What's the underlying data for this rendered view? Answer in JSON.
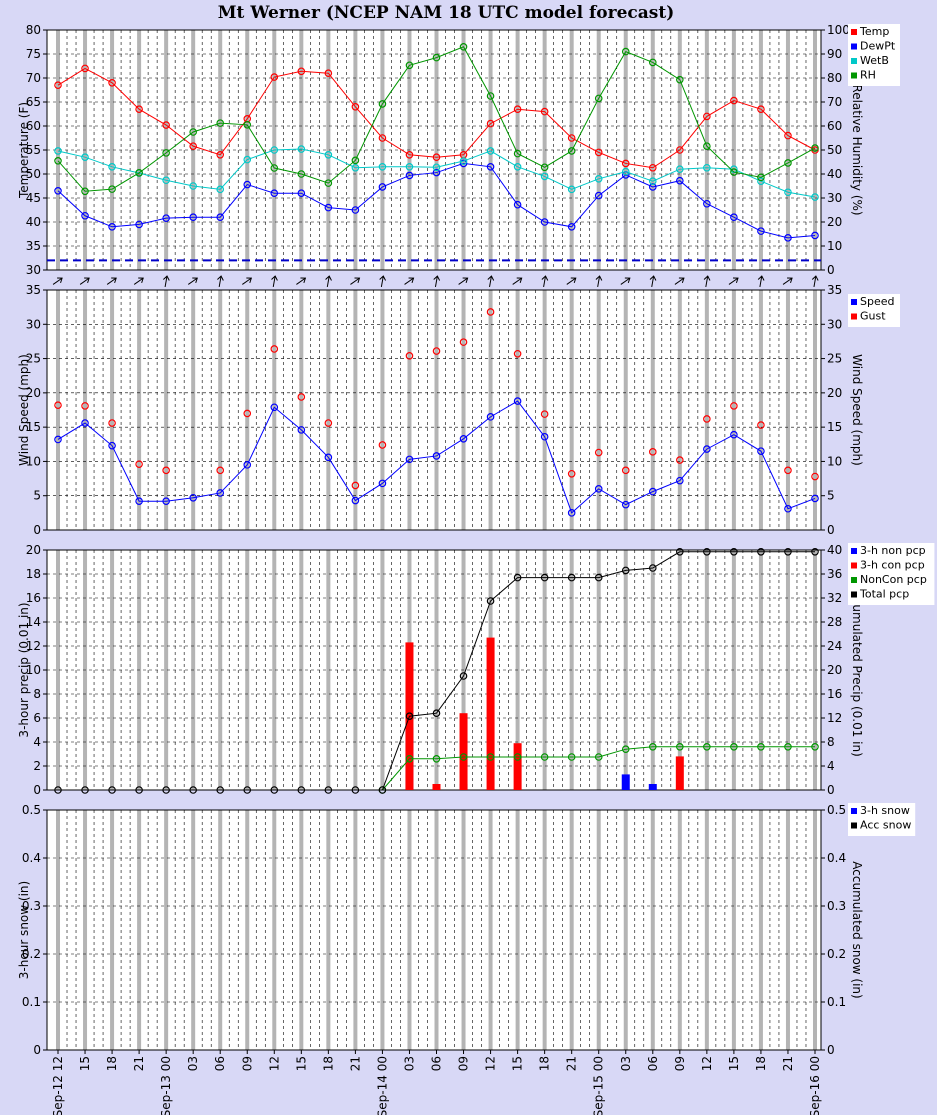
{
  "title": "Mt Werner (NCEP NAM 18 UTC model forecast)",
  "x_labels": [
    "Sep-12 12",
    "15",
    "18",
    "21",
    "Sep-13 00",
    "03",
    "06",
    "09",
    "12",
    "15",
    "18",
    "21",
    "Sep-14 00",
    "03",
    "06",
    "09",
    "12",
    "15",
    "18",
    "21",
    "Sep-15 00",
    "03",
    "06",
    "09",
    "12",
    "15",
    "18",
    "21",
    "Sep-16 00"
  ],
  "chart_data": [
    {
      "type": "line",
      "ylabel": "Temperature (F)",
      "y2label": "Relative Humidity (%)",
      "ylim": [
        30,
        80
      ],
      "yticks": [
        30,
        35,
        40,
        45,
        50,
        55,
        60,
        65,
        70,
        75,
        80
      ],
      "y2lim": [
        0,
        100
      ],
      "y2ticks": [
        0,
        10,
        20,
        30,
        40,
        50,
        60,
        70,
        80,
        90,
        100
      ],
      "freezing_line": 32,
      "wind_arrows": true,
      "series": [
        {
          "name": "Temp",
          "axis": "left",
          "color": "#ff0000",
          "values": [
            68.5,
            72,
            69,
            63.5,
            60.2,
            55.8,
            54,
            61.5,
            70.2,
            71.4,
            71,
            64,
            57.5,
            54,
            53.5,
            54,
            60.5,
            63.5,
            63,
            57.5,
            54.5,
            52.2,
            51.3,
            55,
            62,
            65.3,
            63.5,
            58,
            55
          ]
        },
        {
          "name": "DewPt",
          "axis": "left",
          "color": "#0000ff",
          "values": [
            46.5,
            41.3,
            39,
            39.5,
            40.8,
            41,
            41,
            47.8,
            46,
            46,
            43,
            42.5,
            47.3,
            49.7,
            50.3,
            52.2,
            51.5,
            43.6,
            40,
            39,
            45.5,
            49.8,
            47.3,
            48.6,
            43.8,
            41,
            38.1,
            36.7,
            37.2
          ]
        },
        {
          "name": "WetB",
          "axis": "left",
          "color": "#00c8c8",
          "values": [
            54.8,
            53.5,
            51.5,
            50.2,
            48.7,
            47.5,
            46.8,
            53,
            55,
            55.2,
            54,
            51.3,
            51.5,
            51.5,
            51.4,
            52.7,
            54.8,
            51.5,
            49.5,
            46.8,
            49,
            50.5,
            48.5,
            51,
            51.3,
            51,
            48.5,
            46.2,
            45.2
          ]
        },
        {
          "name": "RH",
          "axis": "right",
          "color": "#009600",
          "values": [
            45.5,
            32.8,
            33.7,
            40.5,
            48.8,
            57.5,
            61.2,
            60.5,
            42.5,
            40,
            36.2,
            45.7,
            69.2,
            85.3,
            88.5,
            93,
            72.5,
            48.5,
            42.8,
            49.6,
            71.5,
            91,
            86.5,
            79.3,
            51.6,
            40.8,
            38.6,
            44.6,
            50.8
          ]
        }
      ]
    },
    {
      "type": "line",
      "ylabel": "Wind Speed (mph)",
      "y2label": "Wind Speed (mph)",
      "ylim": [
        0,
        35
      ],
      "yticks": [
        0,
        5,
        10,
        15,
        20,
        25,
        30,
        35
      ],
      "y2lim": [
        0,
        35
      ],
      "y2ticks": [
        0,
        5,
        10,
        15,
        20,
        25,
        30,
        35
      ],
      "series": [
        {
          "name": "Speed",
          "axis": "left",
          "color": "#0000ff",
          "line": true,
          "values": [
            13.2,
            15.6,
            12.3,
            4.2,
            4.2,
            4.7,
            5.4,
            9.5,
            17.9,
            14.6,
            10.6,
            4.3,
            6.8,
            10.3,
            10.8,
            13.3,
            16.5,
            18.8,
            13.6,
            2.5,
            6,
            3.7,
            5.6,
            7.2,
            11.8,
            13.9,
            11.5,
            3.1,
            4.6
          ]
        },
        {
          "name": "Gust",
          "axis": "left",
          "color": "#ff0000",
          "line": false,
          "values": [
            18.2,
            18.1,
            15.6,
            9.6,
            8.7,
            null,
            8.7,
            17,
            26.4,
            19.4,
            15.6,
            6.5,
            12.4,
            25.4,
            26.1,
            27.4,
            31.8,
            25.7,
            16.9,
            8.2,
            11.3,
            8.7,
            11.4,
            10.2,
            16.2,
            18.1,
            15.3,
            8.7,
            7.8
          ]
        }
      ]
    },
    {
      "type": "bar",
      "ylabel": "3-hour precip (0.01 in)",
      "y2label": "Accumulated Precip (0.01 in)",
      "ylim": [
        0,
        20
      ],
      "yticks": [
        0,
        2,
        4,
        6,
        8,
        10,
        12,
        14,
        16,
        18,
        20
      ],
      "y2lim": [
        0,
        40
      ],
      "y2ticks": [
        0,
        4,
        8,
        12,
        16,
        20,
        24,
        28,
        32,
        36,
        40
      ],
      "series": [
        {
          "name": "3-h non pcp",
          "axis": "left",
          "kind": "bar",
          "color": "#0000ff",
          "values": [
            0,
            0,
            0,
            0,
            0,
            0,
            0,
            0,
            0,
            0,
            0,
            0,
            0,
            5.2,
            0,
            0.5,
            0,
            0,
            0,
            0,
            0,
            1.3,
            0.5,
            0,
            0,
            0,
            0,
            0,
            0
          ]
        },
        {
          "name": "3-h con pcp",
          "axis": "left",
          "kind": "bar",
          "color": "#ff0000",
          "values": [
            0,
            0,
            0,
            0,
            0,
            0,
            0,
            0,
            0,
            0,
            0,
            0,
            0,
            12.3,
            0.5,
            6.4,
            12.7,
            3.9,
            0,
            0,
            0,
            0,
            0,
            2.8,
            0,
            0,
            0,
            0,
            0
          ]
        },
        {
          "name": "NonCon pcp",
          "axis": "right",
          "kind": "line",
          "color": "#009600",
          "start": 12,
          "values": [
            0,
            0,
            0,
            0,
            0,
            0,
            0,
            0,
            0,
            0,
            0,
            0,
            0,
            5.2,
            5.2,
            5.5,
            5.5,
            5.5,
            5.5,
            5.5,
            5.5,
            6.8,
            7.2,
            7.2,
            7.2,
            7.2,
            7.2,
            7.2,
            7.2
          ]
        },
        {
          "name": "Total pcp",
          "axis": "right",
          "kind": "line",
          "color": "#000000",
          "values": [
            0,
            0,
            0,
            0,
            0,
            0,
            0,
            0,
            0,
            0,
            0,
            0,
            0,
            12.3,
            12.8,
            19,
            31.5,
            35.4,
            35.4,
            35.4,
            35.4,
            36.6,
            37,
            39.7,
            39.7,
            39.7,
            39.7,
            39.7,
            39.7
          ]
        }
      ]
    },
    {
      "type": "line",
      "ylabel": "3-hour snow (in)",
      "y2label": "Accumulated snow (in)",
      "ylim": [
        0,
        0.5
      ],
      "yticks": [
        "0",
        "0.1",
        "0.2",
        "0.3",
        "0.4",
        "0.5"
      ],
      "y2lim": [
        0,
        0.5
      ],
      "y2ticks": [
        "0",
        "0.1",
        "0.2",
        "0.3",
        "0.4",
        "0.5"
      ],
      "series": [
        {
          "name": "3-h snow",
          "axis": "left",
          "kind": "bar",
          "color": "#0000ff",
          "values": []
        },
        {
          "name": "Acc snow",
          "axis": "right",
          "kind": "line",
          "color": "#000000",
          "values": []
        }
      ]
    }
  ]
}
